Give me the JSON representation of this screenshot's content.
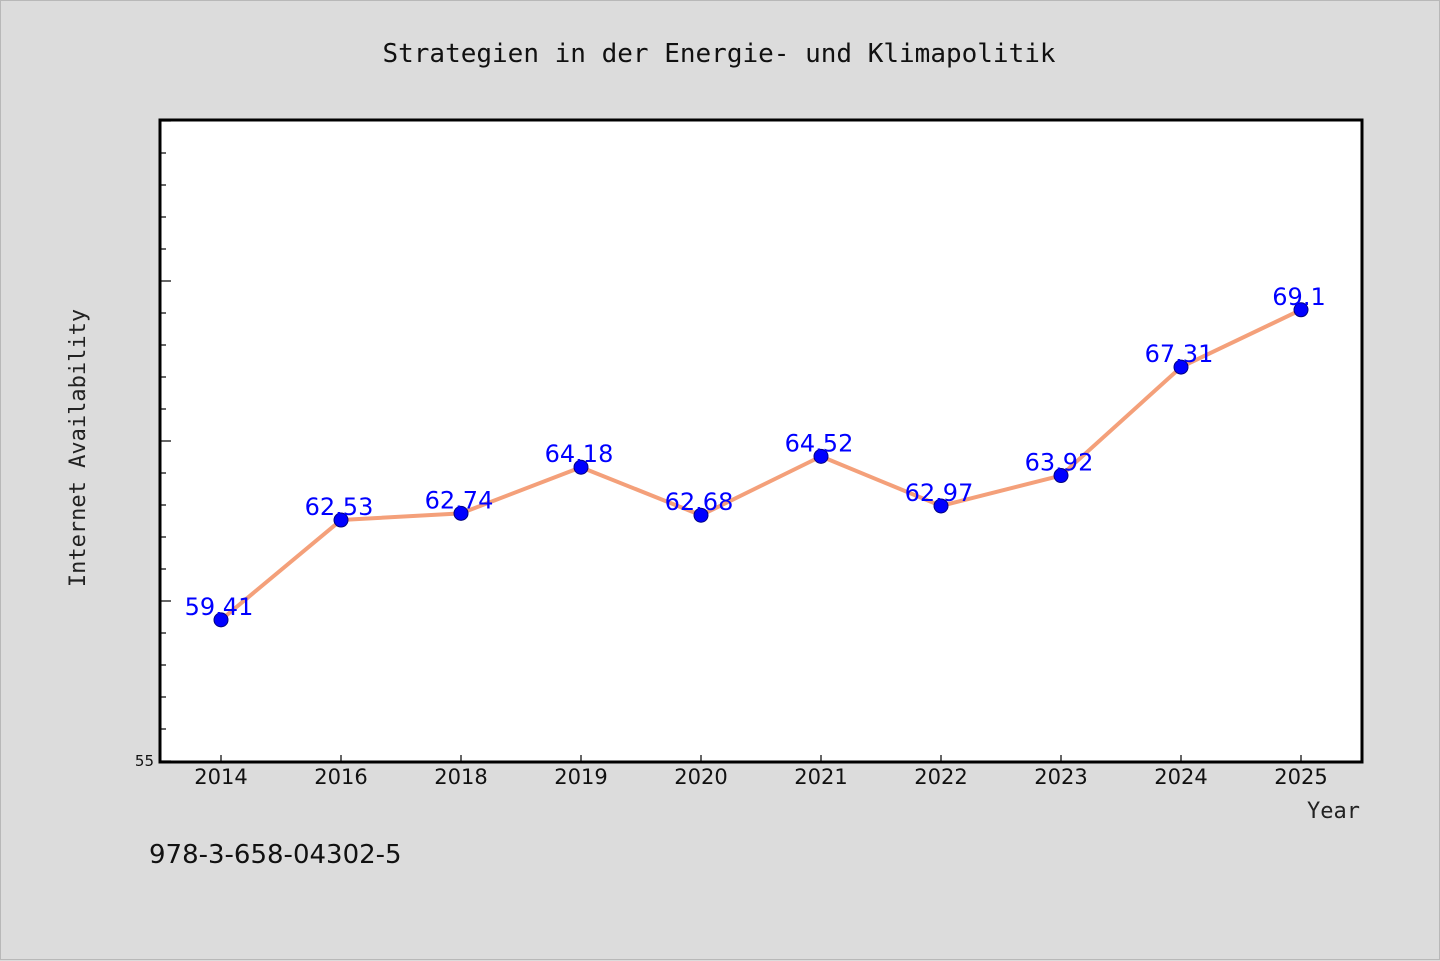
{
  "chart_data": {
    "type": "line",
    "title": "Strategien in der Energie- und Klimapolitik",
    "xlabel": "Year",
    "ylabel": "Internet Availability",
    "categories": [
      "2014",
      "2016",
      "2018",
      "2019",
      "2020",
      "2021",
      "2022",
      "2023",
      "2024",
      "2025"
    ],
    "series": [
      {
        "values": [
          59.41,
          62.53,
          62.74,
          64.18,
          62.68,
          64.52,
          62.97,
          63.92,
          67.31,
          69.1
        ],
        "line_color": "#f4a07a",
        "marker_color": "#0000ff"
      }
    ],
    "data_labels": [
      "59.41",
      "62.53",
      "62.74",
      "64.18",
      "62.68",
      "64.52",
      "62.97",
      "63.92",
      "67.31",
      "69.1"
    ],
    "y_tick_labels": [
      "55"
    ],
    "ylim": [
      55,
      75
    ],
    "grid": false,
    "legend": "none"
  },
  "footer": {
    "isbn": "978-3-658-04302-5"
  }
}
